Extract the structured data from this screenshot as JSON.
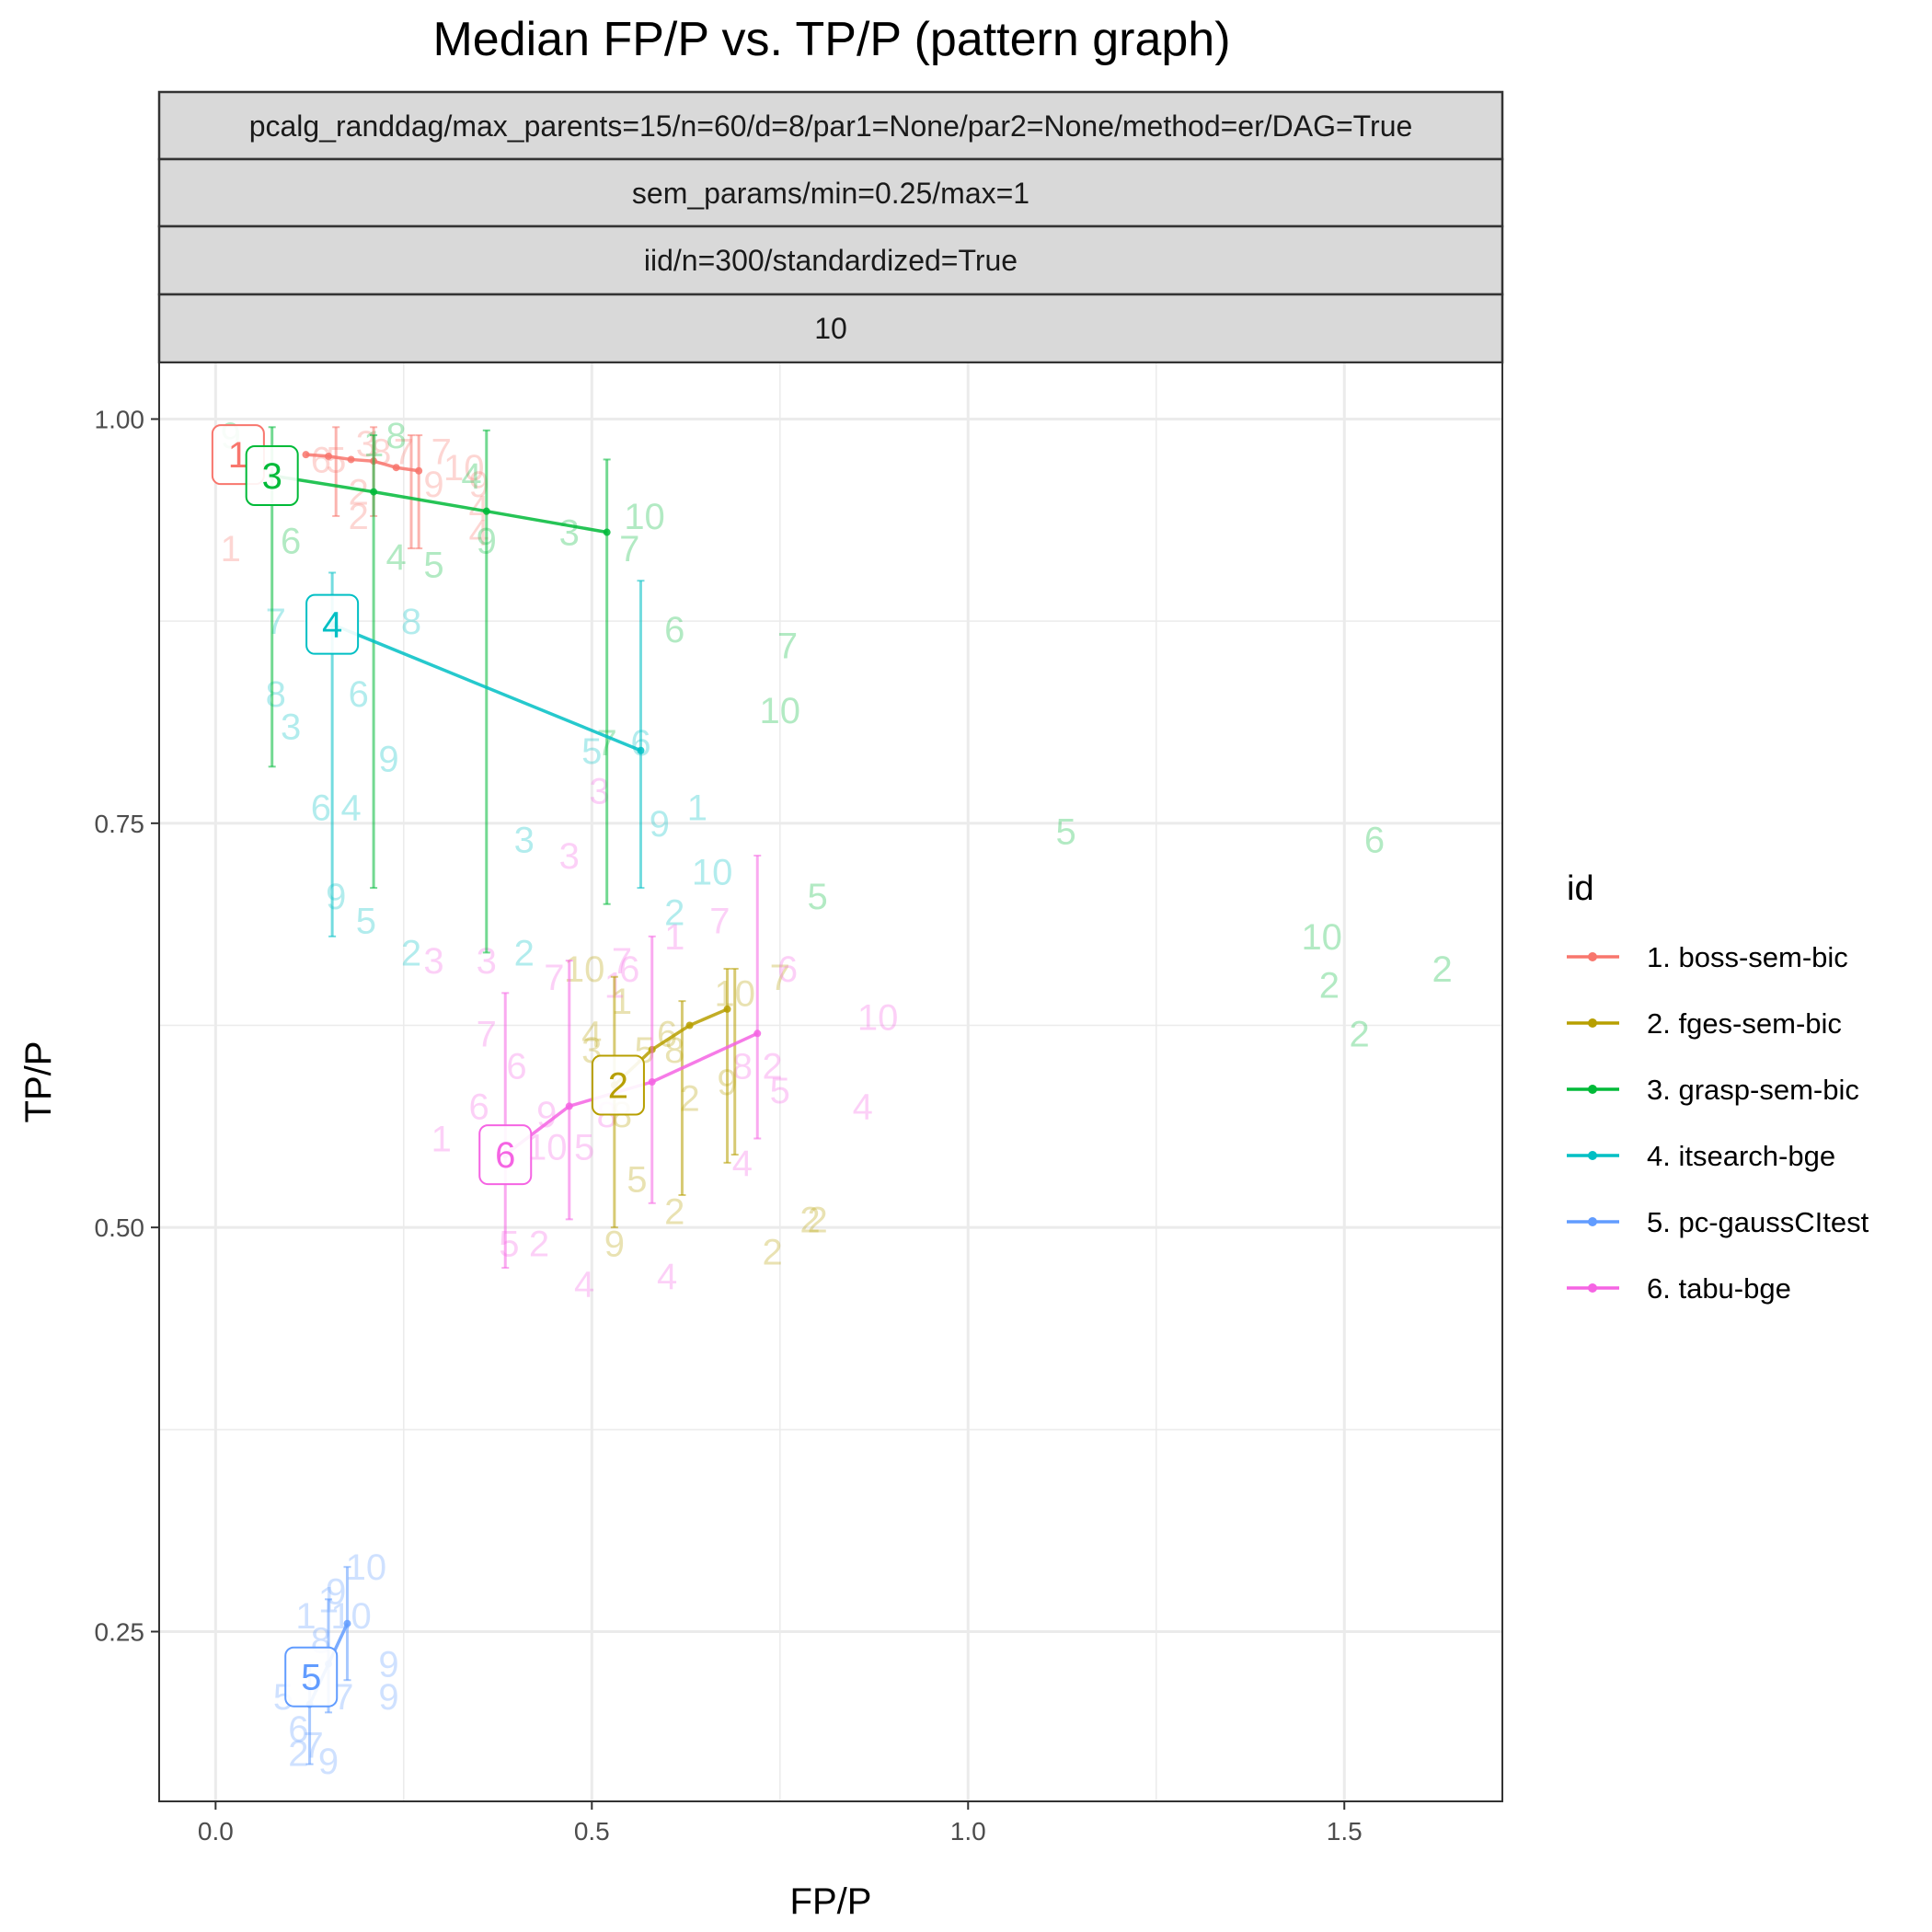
{
  "chart_data": {
    "type": "scatter",
    "title": "Median FP/P vs. TP/P (pattern graph)",
    "xlabel": "FP/P",
    "ylabel": "TP/P",
    "xlim": [
      -0.075,
      1.71
    ],
    "ylim": [
      0.145,
      1.035
    ],
    "x_ticks": [
      0.0,
      0.5,
      1.0,
      1.5
    ],
    "x_tick_labels": [
      "0.0",
      "0.5",
      "1.0",
      "1.5"
    ],
    "y_ticks": [
      0.25,
      0.5,
      0.75,
      1.0
    ],
    "y_tick_labels": [
      "0.25",
      "0.50",
      "0.75",
      "1.00"
    ],
    "grid": true,
    "legend_position": "right",
    "facet_strips": [
      "pcalg_randdag/max_parents=15/n=60/d=8/par1=None/par2=None/method=er/DAG=True",
      "sem_params/min=0.25/max=1",
      "iid/n=300/standardized=True",
      "10"
    ],
    "legend_title": "id",
    "series": [
      {
        "id": "1",
        "name": "1. boss-sem-bic",
        "color": "#F8766D",
        "median_label_pos": [
          0.03,
          0.978
        ],
        "median_path": [
          [
            0.12,
            0.978
          ],
          [
            0.15,
            0.977
          ],
          [
            0.18,
            0.975
          ],
          [
            0.21,
            0.974
          ],
          [
            0.24,
            0.97
          ],
          [
            0.27,
            0.968
          ]
        ],
        "whiskers": [
          [
            0.16,
            0.94,
            0.995
          ],
          [
            0.21,
            0.94,
            0.995
          ],
          [
            0.26,
            0.92,
            0.99
          ],
          [
            0.27,
            0.92,
            0.99
          ]
        ],
        "runs": [
          {
            "t": "1",
            "x": 0.02,
            "y": 0.92
          },
          {
            "t": "2",
            "x": 0.19,
            "y": 0.955
          },
          {
            "t": "2",
            "x": 0.19,
            "y": 0.94
          },
          {
            "t": "3",
            "x": 0.2,
            "y": 0.985
          },
          {
            "t": "4",
            "x": 0.35,
            "y": 0.945
          },
          {
            "t": "4",
            "x": 0.35,
            "y": 0.93
          },
          {
            "t": "5",
            "x": 0.16,
            "y": 0.975
          },
          {
            "t": "6",
            "x": 0.14,
            "y": 0.975
          },
          {
            "t": "7",
            "x": 0.25,
            "y": 0.98
          },
          {
            "t": "7",
            "x": 0.3,
            "y": 0.98
          },
          {
            "t": "8",
            "x": 0.22,
            "y": 0.98
          },
          {
            "t": "9",
            "x": 0.29,
            "y": 0.96
          },
          {
            "t": "9",
            "x": 0.35,
            "y": 0.96
          },
          {
            "t": "10",
            "x": 0.33,
            "y": 0.97
          }
        ]
      },
      {
        "id": "2",
        "name": "2. fges-sem-bic",
        "color": "#B79F00",
        "median_label_pos": [
          0.535,
          0.588
        ],
        "median_path": [
          [
            0.53,
            0.588
          ],
          [
            0.58,
            0.61
          ],
          [
            0.63,
            0.625
          ],
          [
            0.68,
            0.635
          ]
        ],
        "whiskers": [
          [
            0.53,
            0.5,
            0.655
          ],
          [
            0.62,
            0.52,
            0.64
          ],
          [
            0.68,
            0.54,
            0.66
          ],
          [
            0.69,
            0.545,
            0.66
          ]
        ],
        "runs": [
          {
            "t": "1",
            "x": 0.54,
            "y": 0.64
          },
          {
            "t": "2",
            "x": 0.61,
            "y": 0.51
          },
          {
            "t": "2",
            "x": 0.63,
            "y": 0.58
          },
          {
            "t": "2",
            "x": 0.74,
            "y": 0.485
          },
          {
            "t": "2",
            "x": 0.79,
            "y": 0.505
          },
          {
            "t": "2",
            "x": 0.8,
            "y": 0.505
          },
          {
            "t": "3",
            "x": 0.5,
            "y": 0.61
          },
          {
            "t": "4",
            "x": 0.5,
            "y": 0.62
          },
          {
            "t": "5",
            "x": 0.56,
            "y": 0.53
          },
          {
            "t": "5",
            "x": 0.57,
            "y": 0.61
          },
          {
            "t": "6",
            "x": 0.6,
            "y": 0.62
          },
          {
            "t": "7",
            "x": 0.75,
            "y": 0.655
          },
          {
            "t": "8",
            "x": 0.54,
            "y": 0.57
          },
          {
            "t": "8",
            "x": 0.61,
            "y": 0.61
          },
          {
            "t": "9",
            "x": 0.53,
            "y": 0.49
          },
          {
            "t": "9",
            "x": 0.68,
            "y": 0.59
          },
          {
            "t": "10",
            "x": 0.49,
            "y": 0.66
          },
          {
            "t": "10",
            "x": 0.69,
            "y": 0.645
          }
        ]
      },
      {
        "id": "3",
        "name": "3. grasp-sem-bic",
        "color": "#00BA38",
        "median_label_pos": [
          0.075,
          0.965
        ],
        "median_path": [
          [
            0.075,
            0.965
          ],
          [
            0.21,
            0.955
          ],
          [
            0.36,
            0.943
          ],
          [
            0.52,
            0.93
          ]
        ],
        "whiskers": [
          [
            0.075,
            0.785,
            0.995
          ],
          [
            0.21,
            0.71,
            0.99
          ],
          [
            0.36,
            0.67,
            0.993
          ],
          [
            0.52,
            0.7,
            0.975
          ]
        ],
        "runs": [
          {
            "t": "1",
            "x": 0.21,
            "y": 0.985
          },
          {
            "t": "2",
            "x": 1.48,
            "y": 0.65
          },
          {
            "t": "2",
            "x": 1.52,
            "y": 0.62
          },
          {
            "t": "2",
            "x": 1.63,
            "y": 0.66
          },
          {
            "t": "3",
            "x": 0.47,
            "y": 0.93
          },
          {
            "t": "4",
            "x": 0.24,
            "y": 0.915
          },
          {
            "t": "4",
            "x": 0.34,
            "y": 0.965
          },
          {
            "t": "5",
            "x": 0.29,
            "y": 0.91
          },
          {
            "t": "5",
            "x": 1.13,
            "y": 0.745
          },
          {
            "t": "5",
            "x": 0.8,
            "y": 0.705
          },
          {
            "t": "6",
            "x": 0.1,
            "y": 0.925
          },
          {
            "t": "6",
            "x": 0.61,
            "y": 0.87
          },
          {
            "t": "6",
            "x": 1.54,
            "y": 0.74
          },
          {
            "t": "7",
            "x": 0.55,
            "y": 0.92
          },
          {
            "t": "7",
            "x": 0.52,
            "y": 0.8
          },
          {
            "t": "7",
            "x": 0.76,
            "y": 0.86
          },
          {
            "t": "8",
            "x": 0.24,
            "y": 0.99
          },
          {
            "t": "9",
            "x": 0.02,
            "y": 0.99
          },
          {
            "t": "9",
            "x": 0.36,
            "y": 0.925
          },
          {
            "t": "10",
            "x": 0.57,
            "y": 0.94
          },
          {
            "t": "10",
            "x": 0.75,
            "y": 0.82
          },
          {
            "t": "10",
            "x": 1.47,
            "y": 0.68
          }
        ]
      },
      {
        "id": "4",
        "name": "4. itsearch-bge",
        "color": "#00BFC4",
        "median_label_pos": [
          0.155,
          0.873
        ],
        "median_path": [
          [
            0.155,
            0.873
          ],
          [
            0.565,
            0.795
          ]
        ],
        "whiskers": [
          [
            0.155,
            0.68,
            0.905
          ],
          [
            0.565,
            0.71,
            0.9
          ]
        ],
        "runs": [
          {
            "t": "1",
            "x": 0.64,
            "y": 0.76
          },
          {
            "t": "2",
            "x": 0.26,
            "y": 0.67
          },
          {
            "t": "2",
            "x": 0.41,
            "y": 0.67
          },
          {
            "t": "2",
            "x": 0.61,
            "y": 0.695
          },
          {
            "t": "3",
            "x": 0.1,
            "y": 0.81
          },
          {
            "t": "3",
            "x": 0.41,
            "y": 0.74
          },
          {
            "t": "4",
            "x": 0.18,
            "y": 0.76
          },
          {
            "t": "5",
            "x": 0.2,
            "y": 0.69
          },
          {
            "t": "5",
            "x": 0.5,
            "y": 0.795
          },
          {
            "t": "6",
            "x": 0.14,
            "y": 0.76
          },
          {
            "t": "6",
            "x": 0.19,
            "y": 0.83
          },
          {
            "t": "6",
            "x": 0.565,
            "y": 0.8
          },
          {
            "t": "7",
            "x": 0.08,
            "y": 0.875
          },
          {
            "t": "8",
            "x": 0.08,
            "y": 0.83
          },
          {
            "t": "8",
            "x": 0.26,
            "y": 0.875
          },
          {
            "t": "9",
            "x": 0.16,
            "y": 0.705
          },
          {
            "t": "9",
            "x": 0.23,
            "y": 0.79
          },
          {
            "t": "9",
            "x": 0.59,
            "y": 0.75
          },
          {
            "t": "10",
            "x": 0.66,
            "y": 0.72
          }
        ]
      },
      {
        "id": "5",
        "name": "5. pc-gaussCItest",
        "color": "#619CFF",
        "median_label_pos": [
          0.127,
          0.222
        ],
        "median_path": [
          [
            0.125,
            0.205
          ],
          [
            0.15,
            0.23
          ],
          [
            0.175,
            0.255
          ]
        ],
        "whiskers": [
          [
            0.125,
            0.168,
            0.23
          ],
          [
            0.15,
            0.2,
            0.27
          ],
          [
            0.175,
            0.22,
            0.29
          ]
        ],
        "runs": [
          {
            "t": "1",
            "x": 0.12,
            "y": 0.26
          },
          {
            "t": "1",
            "x": 0.15,
            "y": 0.27
          },
          {
            "t": "2",
            "x": 0.11,
            "y": 0.175
          },
          {
            "t": "5",
            "x": 0.09,
            "y": 0.21
          },
          {
            "t": "6",
            "x": 0.11,
            "y": 0.19
          },
          {
            "t": "7",
            "x": 0.13,
            "y": 0.18
          },
          {
            "t": "7",
            "x": 0.17,
            "y": 0.21
          },
          {
            "t": "8",
            "x": 0.14,
            "y": 0.245
          },
          {
            "t": "9",
            "x": 0.15,
            "y": 0.17
          },
          {
            "t": "9",
            "x": 0.23,
            "y": 0.23
          },
          {
            "t": "9",
            "x": 0.23,
            "y": 0.21
          },
          {
            "t": "9",
            "x": 0.16,
            "y": 0.275
          },
          {
            "t": "10",
            "x": 0.2,
            "y": 0.29
          },
          {
            "t": "10",
            "x": 0.18,
            "y": 0.26
          }
        ]
      },
      {
        "id": "6",
        "name": "6. tabu-bge",
        "color": "#F564E3",
        "median_label_pos": [
          0.385,
          0.545
        ],
        "median_path": [
          [
            0.385,
            0.545
          ],
          [
            0.47,
            0.575
          ],
          [
            0.58,
            0.59
          ],
          [
            0.72,
            0.62
          ]
        ],
        "whiskers": [
          [
            0.385,
            0.475,
            0.645
          ],
          [
            0.47,
            0.505,
            0.665
          ],
          [
            0.58,
            0.515,
            0.68
          ],
          [
            0.72,
            0.555,
            0.73
          ]
        ],
        "runs": [
          {
            "t": "1",
            "x": 0.3,
            "y": 0.555
          },
          {
            "t": "1",
            "x": 0.53,
            "y": 0.65
          },
          {
            "t": "1",
            "x": 0.61,
            "y": 0.68
          },
          {
            "t": "2",
            "x": 0.43,
            "y": 0.49
          },
          {
            "t": "2",
            "x": 0.74,
            "y": 0.6
          },
          {
            "t": "3",
            "x": 0.29,
            "y": 0.665
          },
          {
            "t": "3",
            "x": 0.47,
            "y": 0.73
          },
          {
            "t": "3",
            "x": 0.51,
            "y": 0.77
          },
          {
            "t": "3",
            "x": 0.36,
            "y": 0.665
          },
          {
            "t": "4",
            "x": 0.49,
            "y": 0.465
          },
          {
            "t": "4",
            "x": 0.6,
            "y": 0.47
          },
          {
            "t": "4",
            "x": 0.7,
            "y": 0.54
          },
          {
            "t": "4",
            "x": 0.86,
            "y": 0.575
          },
          {
            "t": "5",
            "x": 0.39,
            "y": 0.49
          },
          {
            "t": "5",
            "x": 0.49,
            "y": 0.55
          },
          {
            "t": "5",
            "x": 0.75,
            "y": 0.585
          },
          {
            "t": "6",
            "x": 0.35,
            "y": 0.575
          },
          {
            "t": "6",
            "x": 0.4,
            "y": 0.6
          },
          {
            "t": "6",
            "x": 0.55,
            "y": 0.66
          },
          {
            "t": "6",
            "x": 0.76,
            "y": 0.66
          },
          {
            "t": "7",
            "x": 0.36,
            "y": 0.62
          },
          {
            "t": "7",
            "x": 0.45,
            "y": 0.655
          },
          {
            "t": "7",
            "x": 0.54,
            "y": 0.665
          },
          {
            "t": "7",
            "x": 0.67,
            "y": 0.69
          },
          {
            "t": "8",
            "x": 0.52,
            "y": 0.57
          },
          {
            "t": "8",
            "x": 0.7,
            "y": 0.6
          },
          {
            "t": "9",
            "x": 0.44,
            "y": 0.57
          },
          {
            "t": "10",
            "x": 0.44,
            "y": 0.55
          },
          {
            "t": "10",
            "x": 0.88,
            "y": 0.63
          }
        ]
      }
    ]
  }
}
